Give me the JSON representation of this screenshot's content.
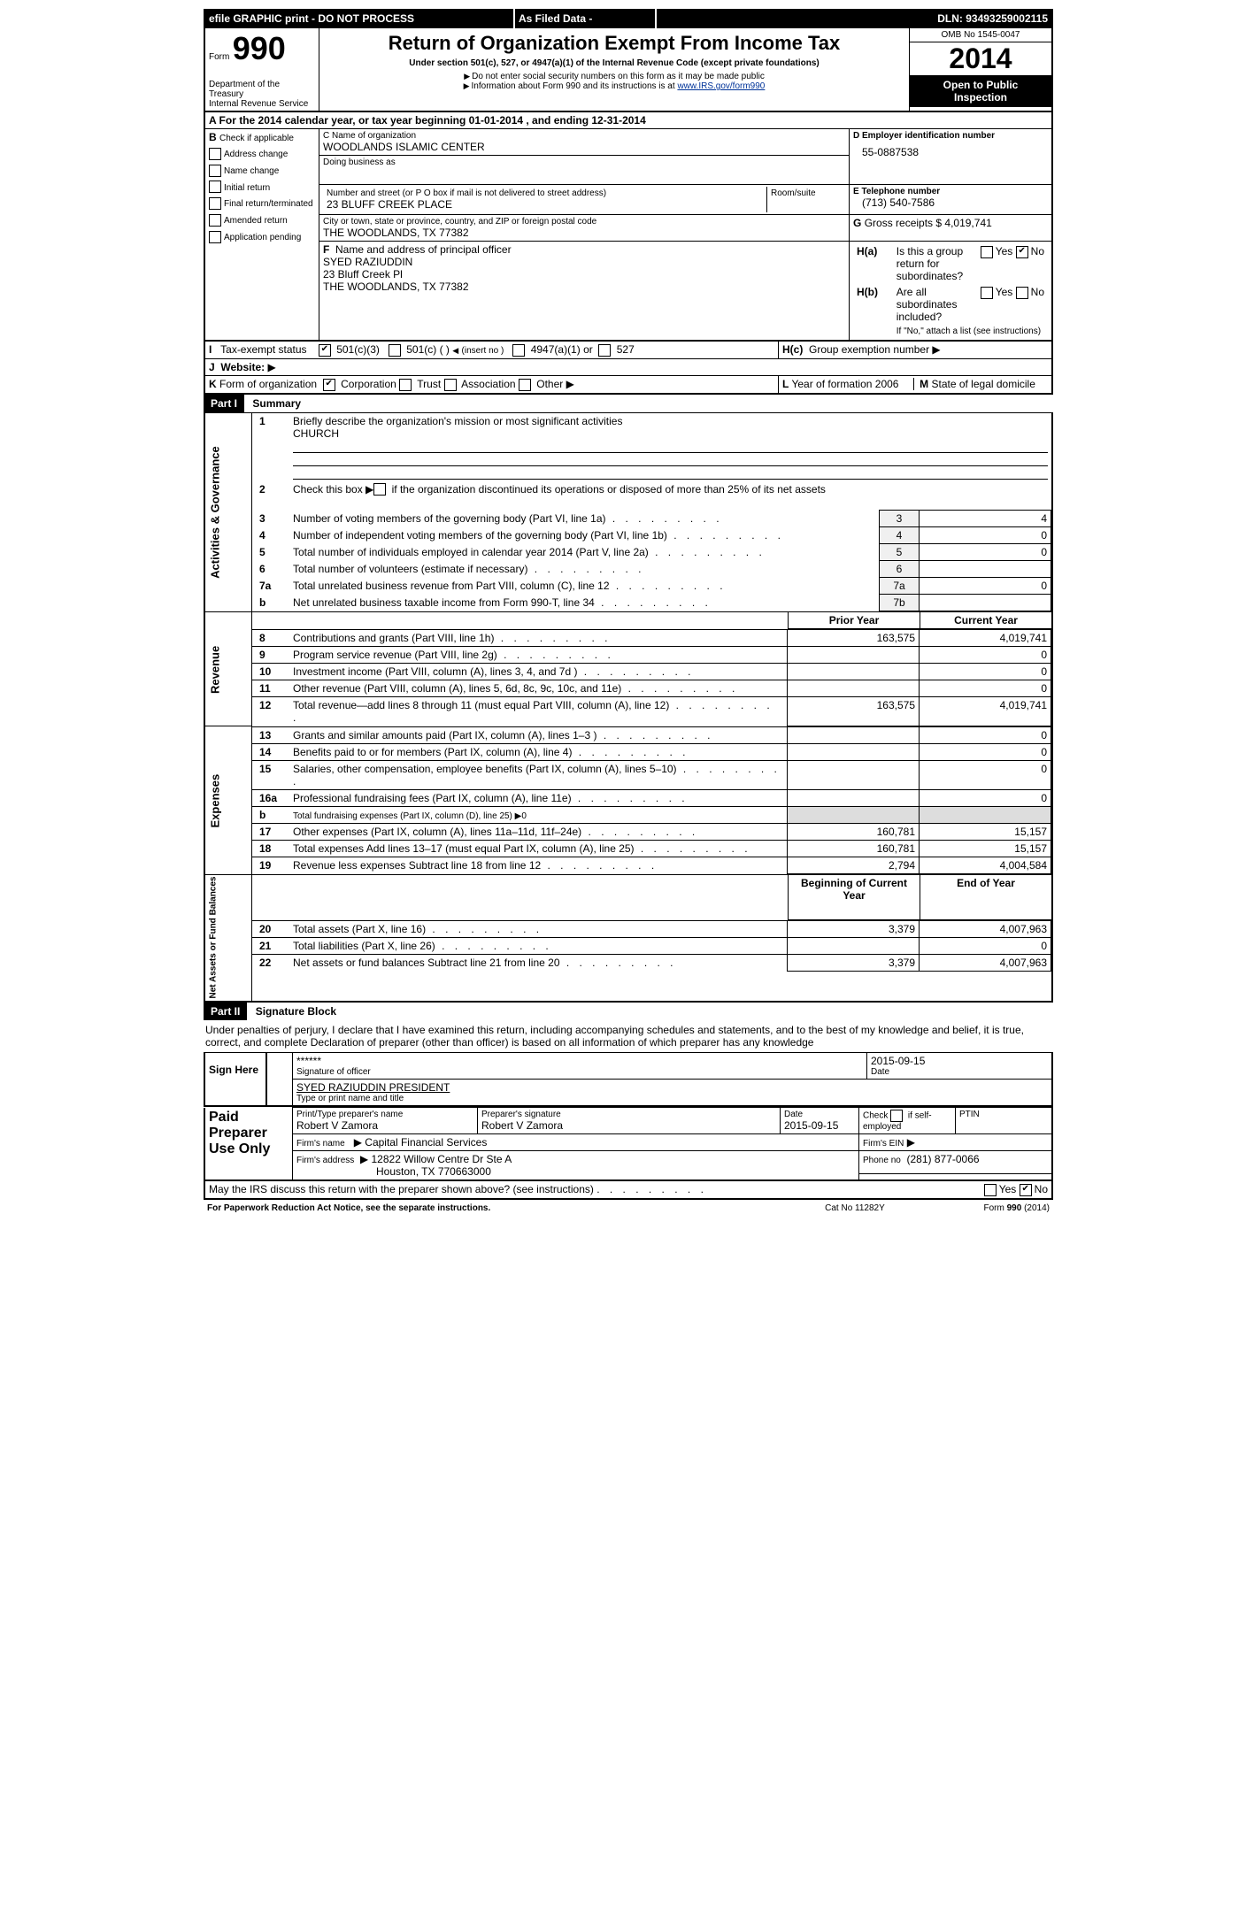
{
  "topbar": {
    "efile": "efile GRAPHIC print - DO NOT PROCESS",
    "asFiled": "As Filed Data -",
    "dln_label": "DLN:",
    "dln": "93493259002115"
  },
  "header": {
    "form": "Form",
    "form_number": "990",
    "dept1": "Department of the Treasury",
    "dept2": "Internal Revenue Service",
    "title": "Return of Organization Exempt From Income Tax",
    "subtitle": "Under section 501(c), 527, or 4947(a)(1) of the Internal Revenue Code (except private foundations)",
    "note1": "Do not enter social security numbers on this form as it may be made public",
    "note2": "Information about Form 990 and its instructions is at",
    "url": "www.IRS.gov/form990",
    "omb": "OMB No 1545-0047",
    "year": "2014",
    "inspection1": "Open to Public",
    "inspection2": "Inspection"
  },
  "sectionA": {
    "line": "A For the 2014 calendar year, or tax year beginning 01-01-2014     , and ending 12-31-2014"
  },
  "sectionB": {
    "label": "B",
    "check": "Check if applicable",
    "items": [
      "Address change",
      "Name change",
      "Initial return",
      "Final return/terminated",
      "Amended return",
      "Application pending"
    ]
  },
  "sectionC": {
    "name_label": "C Name of organization",
    "org_name": "WOODLANDS ISLAMIC CENTER",
    "dba_label": "Doing business as",
    "dba": "",
    "addr_label": "Number and street (or P O  box if mail is not delivered to street address)",
    "room_label": "Room/suite",
    "addr": "23 BLUFF CREEK PLACE",
    "city_label": "City or town, state or province, country, and ZIP or foreign postal code",
    "city": "THE WOODLANDS, TX  77382"
  },
  "sectionD": {
    "label": "D Employer identification number",
    "ein": "55-0887538"
  },
  "sectionE": {
    "label": "E Telephone number",
    "phone": "(713) 540-7586"
  },
  "sectionG": {
    "label": "G",
    "text": "Gross receipts $",
    "amount": "4,019,741"
  },
  "sectionF": {
    "label": "F",
    "text": "Name and address of principal officer",
    "name": "SYED RAZIUDDIN",
    "line1": "23 Bluff Creek Pl",
    "line2": "THE WOODLANDS, TX  77382"
  },
  "sectionH": {
    "ha": "H(a)",
    "ha_text": "Is this a group return for subordinates?",
    "hb": "H(b)",
    "hb_text": "Are all subordinates included?",
    "hb_note": "If \"No,\" attach a list  (see instructions)",
    "hc": "H(c)",
    "hc_text": "Group exemption number",
    "yes": "Yes",
    "no": "No"
  },
  "sectionI": {
    "label": "I",
    "text": "Tax-exempt status",
    "c3": "501(c)(3)",
    "c": "501(c) (  )",
    "insert": "(insert no )",
    "s4947": "4947(a)(1) or",
    "s527": "527"
  },
  "sectionJ": {
    "label": "J",
    "text": "Website:"
  },
  "sectionK": {
    "label": "K",
    "text": "Form of organization",
    "corp": "Corporation",
    "trust": "Trust",
    "assoc": "Association",
    "other": "Other"
  },
  "sectionL": {
    "label": "L",
    "text": "Year of formation",
    "year": "2006"
  },
  "sectionM": {
    "label": "M",
    "text": "State of legal domicile"
  },
  "part1": {
    "label": "Part I",
    "title": "Summary",
    "line1_num": "1",
    "line1": "Briefly describe the organization's mission or most significant activities",
    "mission": "CHURCH",
    "line2_num": "2",
    "line2": "Check this box",
    "line2_rest": "if the organization discontinued its operations or disposed of more than 25% of its net assets",
    "rows_body": [
      {
        "n": "3",
        "t": "Number of voting members of the governing body (Part VI, line 1a)",
        "rn": "3",
        "v": "4"
      },
      {
        "n": "4",
        "t": "Number of independent voting members of the governing body (Part VI, line 1b)",
        "rn": "4",
        "v": "0"
      },
      {
        "n": "5",
        "t": "Total number of individuals employed in calendar year 2014 (Part V, line 2a)",
        "rn": "5",
        "v": "0"
      },
      {
        "n": "6",
        "t": "Total number of volunteers (estimate if necessary)",
        "rn": "6",
        "v": ""
      },
      {
        "n": "7a",
        "t": "Total unrelated business revenue from Part VIII, column (C), line 12",
        "rn": "7a",
        "v": "0"
      },
      {
        "n": "b",
        "t": "Net unrelated business taxable income from Form 990-T, line 34",
        "rn": "7b",
        "v": ""
      }
    ],
    "prior_year": "Prior Year",
    "current_year": "Current Year",
    "beg_year": "Beginning of Current Year",
    "end_year": "End of Year",
    "revenue_rows": [
      {
        "n": "8",
        "t": "Contributions and grants (Part VIII, line 1h)",
        "py": "163,575",
        "cy": "4,019,741"
      },
      {
        "n": "9",
        "t": "Program service revenue (Part VIII, line 2g)",
        "py": "",
        "cy": "0"
      },
      {
        "n": "10",
        "t": "Investment income (Part VIII, column (A), lines 3, 4, and 7d )",
        "py": "",
        "cy": "0"
      },
      {
        "n": "11",
        "t": "Other revenue (Part VIII, column (A), lines 5, 6d, 8c, 9c, 10c, and 11e)",
        "py": "",
        "cy": "0"
      },
      {
        "n": "12",
        "t": "Total revenue—add lines 8 through 11 (must equal Part VIII, column (A), line 12)",
        "py": "163,575",
        "cy": "4,019,741"
      }
    ],
    "expense_rows": [
      {
        "n": "13",
        "t": "Grants and similar amounts paid (Part IX, column (A), lines 1–3 )",
        "py": "",
        "cy": "0"
      },
      {
        "n": "14",
        "t": "Benefits paid to or for members (Part IX, column (A), line 4)",
        "py": "",
        "cy": "0"
      },
      {
        "n": "15",
        "t": "Salaries, other compensation, employee benefits (Part IX, column (A), lines 5–10)",
        "py": "",
        "cy": "0"
      },
      {
        "n": "16a",
        "t": "Professional fundraising fees (Part IX, column (A), line 11e)",
        "py": "",
        "cy": "0"
      },
      {
        "n": "b",
        "t": "Total fundraising expenses (Part IX, column (D), line 25) ▶0",
        "py": null,
        "cy": null
      },
      {
        "n": "17",
        "t": "Other expenses (Part IX, column (A), lines 11a–11d, 11f–24e)",
        "py": "160,781",
        "cy": "15,157"
      },
      {
        "n": "18",
        "t": "Total expenses  Add lines 13–17 (must equal Part IX, column (A), line 25)",
        "py": "160,781",
        "cy": "15,157"
      },
      {
        "n": "19",
        "t": "Revenue less expenses  Subtract line 18 from line 12",
        "py": "2,794",
        "cy": "4,004,584"
      }
    ],
    "net_rows": [
      {
        "n": "20",
        "t": "Total assets (Part X, line 16)",
        "py": "3,379",
        "cy": "4,007,963"
      },
      {
        "n": "21",
        "t": "Total liabilities (Part X, line 26)",
        "py": "",
        "cy": "0"
      },
      {
        "n": "22",
        "t": "Net assets or fund balances  Subtract line 21 from line 20",
        "py": "3,379",
        "cy": "4,007,963"
      }
    ],
    "side_ag": "Activities & Governance",
    "side_rev": "Revenue",
    "side_exp": "Expenses",
    "side_net": "Net Assets or Fund Balances"
  },
  "part2": {
    "label": "Part II",
    "title": "Signature Block",
    "perjury": "Under penalties of perjury, I declare that I have examined this return, including accompanying schedules and statements, and to the best of my knowledge and belief, it is true, correct, and complete  Declaration of preparer (other than officer) is based on all information of which preparer has any knowledge",
    "sign_here": "Sign Here",
    "stars": "******",
    "sig_officer": "Signature of officer",
    "sig_date": "2015-09-15",
    "date_label": "Date",
    "officer_name": "SYED RAZIUDDIN  PRESIDENT",
    "type_name": "Type or print name and title",
    "paid": "Paid Preparer Use Only",
    "prep_name_label": "Print/Type preparer's name",
    "prep_name": "Robert V Zamora",
    "prep_sig_label": "Preparer's signature",
    "prep_sig": "Robert V Zamora",
    "prep_date": "2015-09-15",
    "check_self": "Check",
    "self_emp": "if self-employed",
    "ptin": "PTIN",
    "firm_name_label": "Firm's name",
    "firm_name": "Capital Financial Services",
    "firm_ein_label": "Firm's EIN",
    "firm_addr_label": "Firm's address",
    "firm_addr1": "12822 Willow Centre Dr Ste A",
    "firm_addr2": "Houston, TX  770663000",
    "phone_label": "Phone no",
    "phone": "(281) 877-0066",
    "discuss": "May the IRS discuss this return with the preparer shown above? (see instructions)",
    "yes": "Yes",
    "no": "No"
  },
  "footer": {
    "pra": "For Paperwork Reduction Act Notice, see the separate instructions.",
    "cat": "Cat  No  11282Y",
    "form": "Form 990 (2014)"
  }
}
